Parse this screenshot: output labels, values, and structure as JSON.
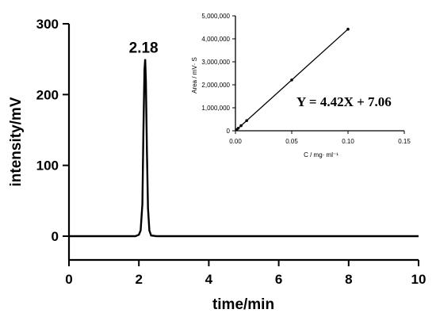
{
  "chart_data": [
    {
      "type": "line",
      "title": "",
      "xlabel": "time/min",
      "ylabel": "intensity/mV",
      "xlim": [
        0,
        10
      ],
      "ylim": [
        -30,
        300
      ],
      "x_ticks": [
        "0",
        "2",
        "4",
        "6",
        "8",
        "10"
      ],
      "y_ticks": [
        "0",
        "100",
        "200",
        "300"
      ],
      "grid": false,
      "peak": {
        "x": 2.18,
        "y": 250,
        "label": "2.18"
      },
      "series": [
        {
          "x": [
            0,
            1.9,
            2.0,
            2.05,
            2.1,
            2.13,
            2.16,
            2.18,
            2.2,
            2.23,
            2.26,
            2.3,
            2.35,
            2.5,
            10
          ],
          "y": [
            0,
            0,
            2,
            8,
            45,
            150,
            235,
            250,
            220,
            120,
            40,
            8,
            1,
            0,
            0
          ]
        }
      ]
    },
    {
      "type": "line",
      "title": "",
      "xlabel": "C / mg· ml⁻¹",
      "ylabel": "Area / mV· S",
      "xlim": [
        0,
        0.15
      ],
      "ylim": [
        0,
        5000000
      ],
      "x_ticks": [
        "0.00",
        "0.05",
        "0.10",
        "0.15"
      ],
      "y_ticks": [
        "0",
        "1,000,000",
        "2,000,000",
        "3,000,000",
        "4,000,000",
        "5,000,000"
      ],
      "grid": false,
      "annotation": "Y = 4.42X + 7.06",
      "series": [
        {
          "x": [
            0.001,
            0.0025,
            0.005,
            0.01,
            0.05,
            0.1
          ],
          "y": [
            44200,
            110500,
            221000,
            442000,
            2210000,
            4420000
          ]
        }
      ]
    }
  ]
}
